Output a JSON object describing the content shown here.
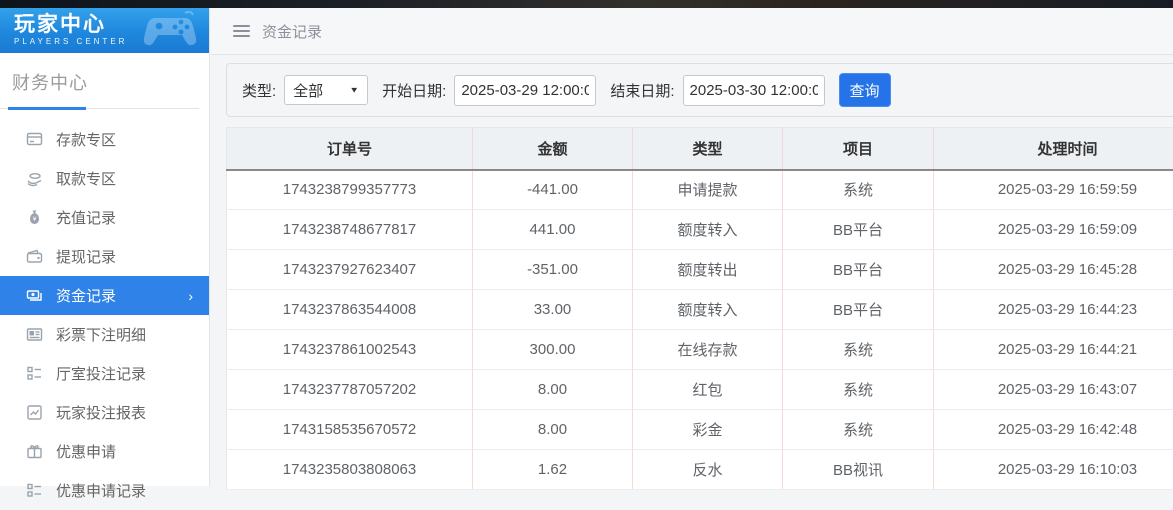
{
  "branding": {
    "title": "玩家中心",
    "subtitle": "PLAYERS CENTER"
  },
  "sidebar": {
    "section_title": "财务中心",
    "items": [
      {
        "label": "存款专区",
        "active": false
      },
      {
        "label": "取款专区",
        "active": false
      },
      {
        "label": "充值记录",
        "active": false
      },
      {
        "label": "提现记录",
        "active": false
      },
      {
        "label": "资金记录",
        "active": true
      },
      {
        "label": "彩票下注明细",
        "active": false
      },
      {
        "label": "厅室投注记录",
        "active": false
      },
      {
        "label": "玩家投注报表",
        "active": false
      },
      {
        "label": "优惠申请",
        "active": false
      },
      {
        "label": "优惠申请记录",
        "active": false
      }
    ],
    "active_chevron": "›"
  },
  "breadcrumb": {
    "title": "资金记录"
  },
  "filters": {
    "type_label": "类型:",
    "type_value": "全部",
    "start_label": "开始日期:",
    "start_value": "2025-03-29 12:00:00",
    "end_label": "结束日期:",
    "end_value": "2025-03-30 12:00:00",
    "search_label": "查询"
  },
  "table": {
    "headers": [
      "订单号",
      "金额",
      "类型",
      "项目",
      "处理时间"
    ],
    "rows": [
      [
        "1743238799357773",
        "-441.00",
        "申请提款",
        "系统",
        "2025-03-29 16:59:59"
      ],
      [
        "1743238748677817",
        "441.00",
        "额度转入",
        "BB平台",
        "2025-03-29 16:59:09"
      ],
      [
        "1743237927623407",
        "-351.00",
        "额度转出",
        "BB平台",
        "2025-03-29 16:45:28"
      ],
      [
        "1743237863544008",
        "33.00",
        "额度转入",
        "BB平台",
        "2025-03-29 16:44:23"
      ],
      [
        "1743237861002543",
        "300.00",
        "在线存款",
        "系统",
        "2025-03-29 16:44:21"
      ],
      [
        "1743237787057202",
        "8.00",
        "红包",
        "系统",
        "2025-03-29 16:43:07"
      ],
      [
        "1743158535670572",
        "8.00",
        "彩金",
        "系统",
        "2025-03-29 16:42:48"
      ],
      [
        "1743235803808063",
        "1.62",
        "反水",
        "BB视讯",
        "2025-03-29 16:10:03"
      ]
    ]
  },
  "colors": {
    "accent_blue": "#2e82e8",
    "button_blue": "#2573e8",
    "header_bg": "#eef1f4",
    "header_border": "#8f8689",
    "column_divider": "#f6dada",
    "logo_gradient_top": "#33a1ea",
    "logo_gradient_bottom": "#1a7bd2"
  }
}
